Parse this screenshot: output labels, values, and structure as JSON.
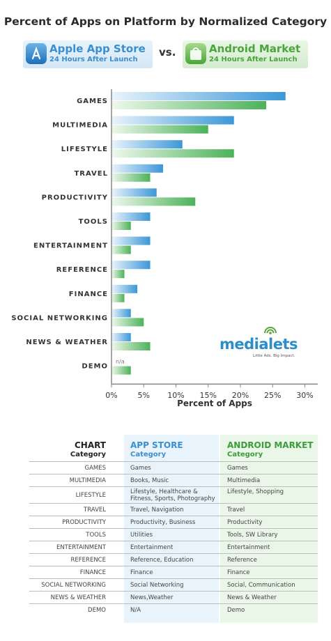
{
  "title": "Percent of Apps on Platform by Normalized Category",
  "badges": {
    "apple": {
      "name": "Apple App Store",
      "sub": "24 Hours After Launch"
    },
    "vs": "vs.",
    "android": {
      "name": "Android Market",
      "sub": "24 Hours After Launch"
    }
  },
  "colors": {
    "apple": "#3c97d8",
    "android": "#4cb25a"
  },
  "chart_data": {
    "type": "bar",
    "orientation": "horizontal",
    "categories": [
      "GAMES",
      "MULTIMEDIA",
      "LIFESTYLE",
      "TRAVEL",
      "PRODUCTIVITY",
      "TOOLS",
      "ENTERTAINMENT",
      "REFERENCE",
      "FINANCE",
      "SOCIAL NETWORKING",
      "NEWS & WEATHER",
      "DEMO"
    ],
    "series": [
      {
        "name": "Apple App Store",
        "values": [
          27,
          19,
          11,
          8,
          7,
          6,
          6,
          6,
          4,
          3,
          3,
          null
        ]
      },
      {
        "name": "Android Market",
        "values": [
          24,
          15,
          19,
          6,
          13,
          3,
          3,
          2,
          2,
          5,
          6,
          3
        ]
      }
    ],
    "annotations": [
      {
        "category": "DEMO",
        "series": "Apple App Store",
        "text": "n/a"
      }
    ],
    "xlabel": "Percent of Apps",
    "xlim": [
      0,
      32
    ],
    "ticks": [
      0,
      5,
      10,
      15,
      20,
      25,
      30
    ],
    "tick_labels": [
      "0%",
      "5%",
      "10%",
      "15%",
      "20%",
      "25%",
      "30%"
    ],
    "grid": false
  },
  "logo": {
    "word": "medialets",
    "tagline": "Little Ads. Big Impact."
  },
  "table": {
    "headers": {
      "chart": "CHART",
      "chart_sub": "Category",
      "app": "APP STORE",
      "app_sub": "Category",
      "android": "ANDROID MARKET",
      "android_sub": "Category"
    },
    "rows": [
      {
        "category": "GAMES",
        "app": "Games",
        "android": "Games"
      },
      {
        "category": "MULTIMEDIA",
        "app": "Books, Music",
        "android": "Multimedia"
      },
      {
        "category": "LIFESTYLE",
        "app": "Lifestyle, Healthcare & Fitness, Sports, Photography",
        "android": "Lifestyle, Shopping"
      },
      {
        "category": "TRAVEL",
        "app": "Travel, Navigation",
        "android": "Travel"
      },
      {
        "category": "PRODUCTIVITY",
        "app": "Productivity, Business",
        "android": "Productivity"
      },
      {
        "category": "TOOLS",
        "app": "Utilities",
        "android": "Tools, SW Library"
      },
      {
        "category": "ENTERTAINMENT",
        "app": "Entertainment",
        "android": "Entertainment"
      },
      {
        "category": "REFERENCE",
        "app": "Reference, Education",
        "android": "Reference"
      },
      {
        "category": "FINANCE",
        "app": "Finance",
        "android": "Finance"
      },
      {
        "category": "SOCIAL NETWORKING",
        "app": "Social Networking",
        "android": "Social, Communication"
      },
      {
        "category": "NEWS & WEATHER",
        "app": "News,Weather",
        "android": "News & Weather"
      },
      {
        "category": "DEMO",
        "app": "N/A",
        "android": "Demo"
      }
    ]
  }
}
